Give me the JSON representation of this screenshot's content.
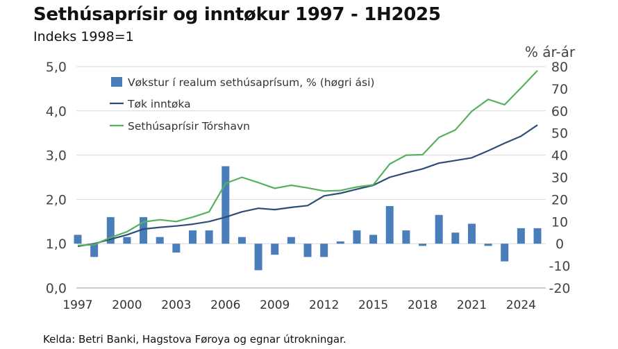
{
  "chart_data": {
    "type": "bar+line",
    "title": "Sethúsaprísir og inntøkur 1997 - 1H2025",
    "subtitle": "Indeks 1998=1",
    "right_axis_label": "% ár-ár",
    "source": "Kelda: Betri Banki, Hagstova Føroya og egnar útrokningar.",
    "x": [
      1997,
      1998,
      1999,
      2000,
      2001,
      2002,
      2003,
      2004,
      2005,
      2006,
      2007,
      2008,
      2009,
      2010,
      2011,
      2012,
      2013,
      2014,
      2015,
      2016,
      2017,
      2018,
      2019,
      2020,
      2021,
      2022,
      2023,
      2024,
      2025
    ],
    "x_tick_labels": [
      "1997",
      "2000",
      "2003",
      "2006",
      "2009",
      "2012",
      "2015",
      "2018",
      "2021",
      "2024"
    ],
    "x_tick_values": [
      1997,
      2000,
      2003,
      2006,
      2009,
      2012,
      2015,
      2018,
      2021,
      2024
    ],
    "left_axis": {
      "ylim": [
        0,
        5
      ],
      "ticks": [
        0,
        1,
        2,
        3,
        4,
        5
      ],
      "tick_labels": [
        "0,0",
        "1,0",
        "2,0",
        "3,0",
        "4,0",
        "5,0"
      ]
    },
    "right_axis": {
      "ylim": [
        -20,
        80
      ],
      "ticks": [
        -20,
        -10,
        0,
        10,
        20,
        30,
        40,
        50,
        60,
        70,
        80
      ],
      "tick_labels": [
        "-20",
        "-10",
        "0",
        "10",
        "20",
        "30",
        "40",
        "50",
        "60",
        "70",
        "80"
      ]
    },
    "series": [
      {
        "name": "Vøkstur í realum sethúsaprísum, % (høgri ási)",
        "kind": "bar",
        "axis": "right",
        "color": "#4a7ebb",
        "values": [
          4,
          -6,
          12,
          3,
          12,
          3,
          -4,
          6,
          6,
          35,
          3,
          -12,
          -5,
          3,
          -6,
          -6,
          1,
          6,
          4,
          17,
          6,
          -1,
          13,
          5,
          9,
          -1,
          -8,
          7,
          7
        ]
      },
      {
        "name": "Tøk inntøka",
        "kind": "line",
        "axis": "left",
        "color": "#2c4d75",
        "values": [
          0.94,
          1.0,
          1.1,
          1.2,
          1.33,
          1.37,
          1.4,
          1.44,
          1.5,
          1.6,
          1.72,
          1.8,
          1.77,
          1.82,
          1.86,
          2.08,
          2.14,
          2.23,
          2.32,
          2.5,
          2.6,
          2.69,
          2.82,
          2.88,
          2.94,
          3.1,
          3.27,
          3.43,
          3.68
        ]
      },
      {
        "name": "Sethúsaprísir Tórshavn",
        "kind": "line",
        "axis": "left",
        "color": "#57b05e",
        "values": [
          0.96,
          0.98,
          1.14,
          1.27,
          1.49,
          1.54,
          1.5,
          1.6,
          1.72,
          2.36,
          2.5,
          2.38,
          2.25,
          2.32,
          2.26,
          2.19,
          2.2,
          2.28,
          2.33,
          2.8,
          3.0,
          3.01,
          3.4,
          3.57,
          3.99,
          4.26,
          4.14,
          4.52,
          4.91
        ]
      }
    ],
    "legend": [
      "Vøkstur í realum sethúsaprísum, % (høgri ási)",
      "Tøk inntøka",
      "Sethúsaprísir Tórshavn"
    ],
    "legend_position": "top-left",
    "grid": true
  }
}
